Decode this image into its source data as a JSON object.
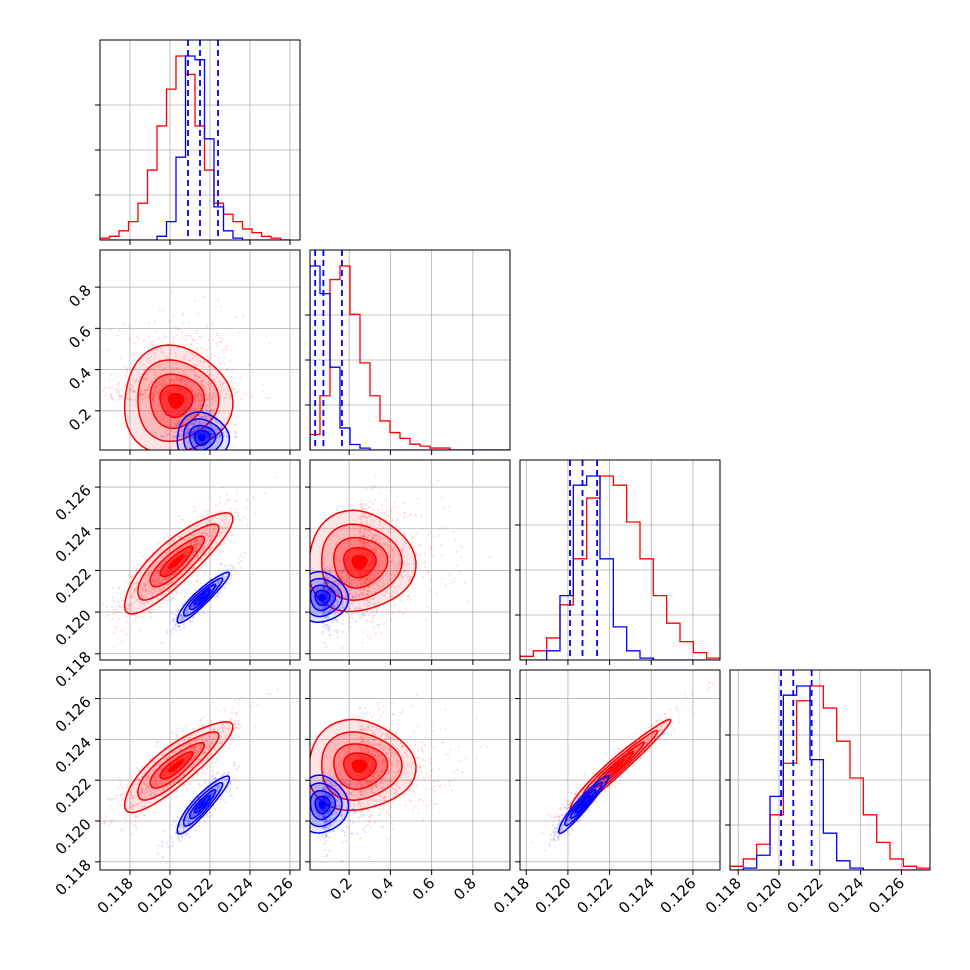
{
  "chart_data": {
    "type": "corner",
    "colors": {
      "series_a": "#ff0000",
      "series_b": "#0000ff"
    },
    "grid": true,
    "parameters": [
      {
        "range": [
          0.1165,
          0.1265
        ],
        "ticks": [
          0.118,
          0.12,
          0.122,
          0.124,
          0.126
        ],
        "tick_labels": [
          "0.118",
          "0.120",
          "0.122",
          "0.124",
          "0.126"
        ]
      },
      {
        "range": [
          0.01,
          0.98
        ],
        "ticks": [
          0.2,
          0.4,
          0.6,
          0.8
        ],
        "tick_labels": [
          "0.2",
          "0.4",
          "0.6",
          "0.8"
        ]
      },
      {
        "range": [
          0.1177,
          0.1273
        ],
        "ticks": [
          0.118,
          0.12,
          0.122,
          0.124,
          0.126
        ],
        "tick_labels": [
          "0.118",
          "0.120",
          "0.122",
          "0.124",
          "0.126"
        ]
      },
      {
        "range": [
          0.1176,
          0.1274
        ],
        "ticks": [
          0.118,
          0.12,
          0.122,
          0.124,
          0.126
        ],
        "tick_labels": [
          "0.118",
          "0.120",
          "0.122",
          "0.124",
          "0.126"
        ]
      }
    ],
    "series": [
      {
        "color": "#ff0000",
        "means": [
          0.1203,
          0.25,
          0.1224,
          0.1227
        ],
        "sds": [
          0.00135,
          0.13,
          0.0012,
          0.0011
        ],
        "correlations": [
          [
            1,
            0,
            0.85,
            0.85
          ],
          [
            0,
            1,
            0,
            0
          ],
          [
            0.85,
            0,
            1,
            0.97
          ],
          [
            0.85,
            0,
            0.97,
            1
          ]
        ],
        "histograms": [
          {
            "edges_range": [
              0.1165,
              0.126
            ],
            "counts": [
              1,
              2,
              5,
              10,
              20,
              38,
              62,
              82,
              100,
              90,
              62,
              38,
              20,
              14,
              10,
              6,
              4,
              2,
              1,
              0
            ]
          },
          {
            "edges_range": [
              0.01,
              0.98
            ],
            "counts": [
              8,
              28,
              88,
              95,
              70,
              45,
              28,
              15,
              9,
              6,
              3,
              2,
              1,
              1,
              0,
              0,
              0,
              0,
              0,
              0
            ]
          },
          {
            "edges_range": [
              0.1177,
              0.1273
            ],
            "counts": [
              2,
              5,
              12,
              30,
              55,
              88,
              100,
              95,
              75,
              55,
              35,
              20,
              10,
              4,
              1
            ]
          },
          {
            "edges_range": [
              0.1176,
              0.1274
            ],
            "counts": [
              2,
              6,
              14,
              30,
              58,
              92,
              100,
              88,
              70,
              50,
              30,
              15,
              6,
              2,
              1
            ]
          }
        ]
      },
      {
        "color": "#0000ff",
        "means": [
          0.1216,
          0.07,
          0.1207,
          0.1208
        ],
        "sds": [
          0.00065,
          0.06,
          0.0006,
          0.0007
        ],
        "correlations": [
          [
            1,
            0,
            0.92,
            0.9
          ],
          [
            0,
            1,
            0,
            0
          ],
          [
            0.92,
            0,
            1,
            0.95
          ],
          [
            0.9,
            0,
            0.95,
            1
          ]
        ],
        "histograms": [
          {
            "edges_range": [
              0.1165,
              0.126
            ],
            "counts": [
              0,
              0,
              0,
              0,
              0,
              0,
              2,
              10,
              45,
              100,
              98,
              55,
              18,
              5,
              1,
              0,
              0,
              0,
              0,
              0
            ]
          },
          {
            "edges_range": [
              0.01,
              0.98
            ],
            "counts": [
              100,
              85,
              45,
              12,
              3,
              1,
              0,
              0,
              0,
              0,
              0,
              0,
              0,
              0,
              0,
              0,
              0,
              0,
              0,
              0
            ]
          },
          {
            "edges_range": [
              0.1177,
              0.1273
            ],
            "counts": [
              0,
              0,
              5,
              35,
              95,
              100,
              55,
              18,
              5,
              1,
              0,
              0,
              0,
              0,
              0
            ]
          },
          {
            "edges_range": [
              0.1176,
              0.1274
            ],
            "counts": [
              0,
              1,
              8,
              40,
              95,
              100,
              60,
              20,
              5,
              1,
              0,
              0,
              0,
              0,
              0
            ]
          }
        ],
        "quantiles": [
          [
            0.1209,
            0.1215,
            0.1224
          ],
          [
            0.035,
            0.075,
            0.165
          ],
          [
            0.1201,
            0.1207,
            0.1214
          ],
          [
            0.1201,
            0.1207,
            0.1216
          ]
        ]
      }
    ]
  }
}
